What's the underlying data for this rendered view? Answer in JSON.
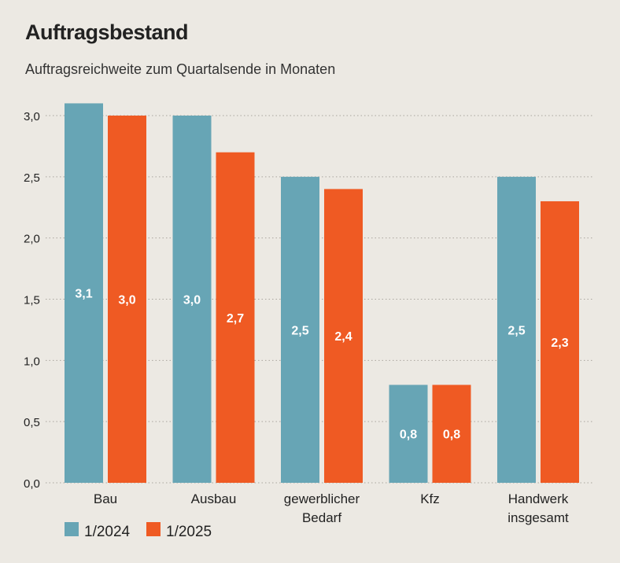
{
  "title": "Auftragsbestand",
  "subtitle": "Auftragsreichweite zum Quartalsende in Monaten",
  "chart_data": {
    "type": "bar",
    "title": "Auftragsbestand",
    "subtitle": "Auftragsreichweite zum Quartalsende in Monaten",
    "categories": [
      [
        "Bau"
      ],
      [
        "Ausbau"
      ],
      [
        "gewerblicher",
        "Bedarf"
      ],
      [
        "Kfz"
      ],
      [
        "Handwerk",
        "insgesamt"
      ]
    ],
    "series": [
      {
        "name": "1/2024",
        "color": "#67a5b5",
        "values": [
          3.1,
          3.0,
          2.5,
          0.8,
          2.5
        ],
        "labels": [
          "3,1",
          "3,0",
          "2,5",
          "0,8",
          "2,5"
        ]
      },
      {
        "name": "1/2025",
        "color": "#ef5a23",
        "values": [
          3.0,
          2.7,
          2.4,
          0.8,
          2.3
        ],
        "labels": [
          "3,0",
          "2,7",
          "2,4",
          "0,8",
          "2,3"
        ]
      }
    ],
    "yticks": [
      0,
      0.5,
      1,
      1.5,
      2,
      2.5,
      3
    ],
    "ytick_labels": [
      "0,0",
      "0,5",
      "1,0",
      "1,5",
      "2,0",
      "2,5",
      "3,0"
    ],
    "ylim": [
      0,
      3
    ],
    "grid": true,
    "legend": "bottom-left"
  }
}
